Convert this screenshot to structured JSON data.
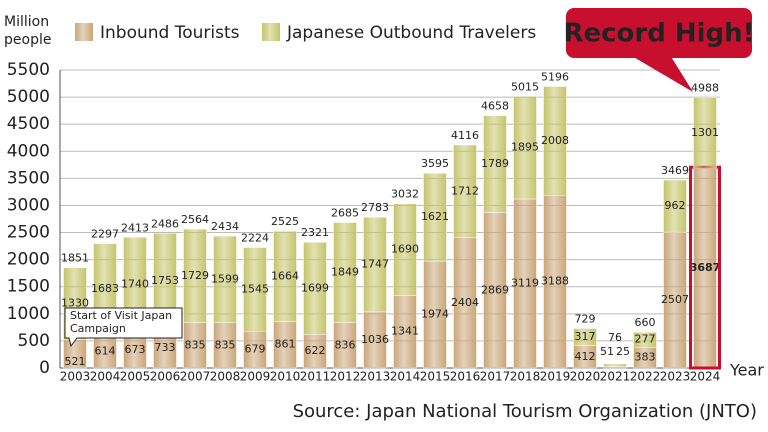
{
  "chart_data": {
    "type": "stacked_bar",
    "ylabel_lines": [
      "Million",
      "people"
    ],
    "xlabel": "Year",
    "source": "Source: Japan National Tourism Organization (JNTO)",
    "categories": [
      "2003",
      "2004",
      "2005",
      "2006",
      "2007",
      "2008",
      "2009",
      "2010",
      "2011",
      "2012",
      "2013",
      "2014",
      "2015",
      "2016",
      "2017",
      "2018",
      "2019",
      "2020",
      "2021",
      "2022",
      "2023",
      "2024"
    ],
    "series": [
      {
        "name": "Inbound Tourists",
        "color": "#c9a577",
        "values": [
          521,
          614,
          673,
          733,
          835,
          835,
          679,
          861,
          622,
          836,
          1036,
          1341,
          1974,
          2404,
          2869,
          3119,
          3188,
          412,
          25,
          383,
          2507,
          3687
        ]
      },
      {
        "name": "Japanese Outbound Travelers",
        "color": "#c4c46a",
        "values": [
          1330,
          1683,
          1740,
          1753,
          1729,
          1599,
          1545,
          1664,
          1699,
          1849,
          1747,
          1690,
          1621,
          1712,
          1789,
          1895,
          2008,
          317,
          51,
          277,
          962,
          1301
        ]
      }
    ],
    "totals": [
      1851,
      2297,
      2413,
      2486,
      2564,
      2434,
      2224,
      2525,
      2321,
      2685,
      2783,
      3032,
      3595,
      4116,
      4658,
      5015,
      5196,
      729,
      76,
      660,
      3469,
      4988
    ],
    "ylim": [
      0,
      5500
    ],
    "yticks": [
      0,
      500,
      1000,
      1500,
      2000,
      2500,
      3000,
      3500,
      4000,
      4500,
      5000,
      5500
    ],
    "grid": true,
    "highlight": {
      "category": "2024",
      "color": "#c8102e",
      "label": "Record High!"
    },
    "annotation": {
      "category": "2003",
      "lines": [
        "Start of Visit Japan",
        "Campaign"
      ]
    }
  }
}
